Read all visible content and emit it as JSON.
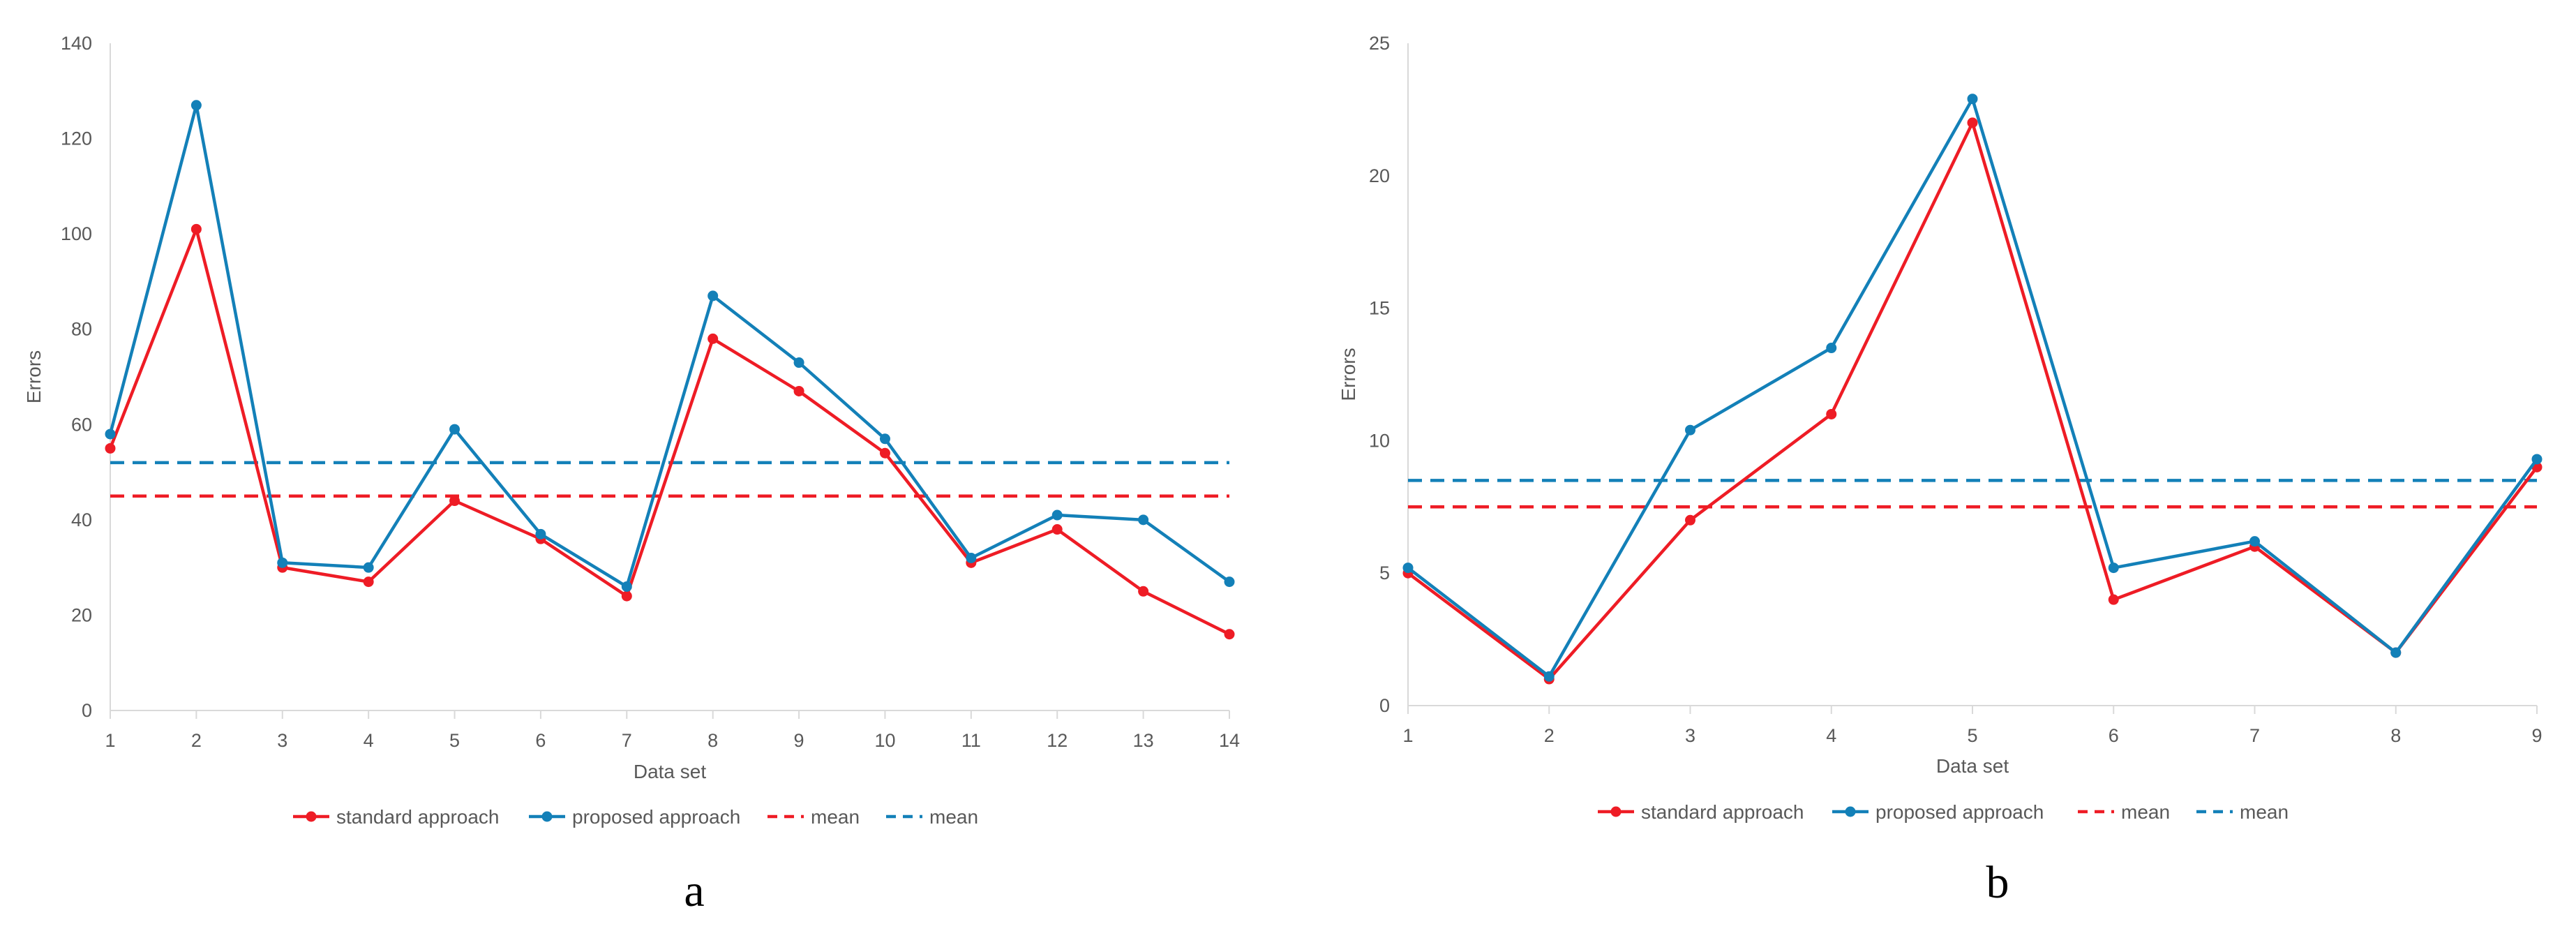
{
  "chart_data": [
    {
      "type": "line",
      "panel_label": "a",
      "title": "",
      "xlabel": "Data set",
      "ylabel": "Errors",
      "categories": [
        "1",
        "2",
        "3",
        "4",
        "5",
        "6",
        "7",
        "8",
        "9",
        "10",
        "11",
        "12",
        "13",
        "14"
      ],
      "ylim": [
        0,
        140
      ],
      "yticks": [
        0,
        20,
        40,
        60,
        80,
        100,
        120,
        140
      ],
      "grid": false,
      "legend_position": "bottom",
      "series": [
        {
          "name": "standard approach",
          "color": "#ee1c25",
          "style": "solid",
          "markers": true,
          "values": [
            55,
            101,
            30,
            27,
            44,
            36,
            24,
            78,
            67,
            54,
            31,
            38,
            25,
            16
          ]
        },
        {
          "name": "proposed approach",
          "color": "#1380b8",
          "style": "solid",
          "markers": true,
          "values": [
            58,
            127,
            31,
            30,
            59,
            37,
            26,
            87,
            73,
            57,
            32,
            41,
            40,
            27
          ]
        },
        {
          "name": "mean",
          "color": "#ee1c25",
          "style": "dashed",
          "markers": false,
          "constant": 45
        },
        {
          "name": "mean",
          "color": "#1380b8",
          "style": "dashed",
          "markers": false,
          "constant": 52
        }
      ]
    },
    {
      "type": "line",
      "panel_label": "b",
      "title": "",
      "xlabel": "Data set",
      "ylabel": "Errors",
      "categories": [
        "1",
        "2",
        "3",
        "4",
        "5",
        "6",
        "7",
        "8",
        "9"
      ],
      "ylim": [
        0,
        25
      ],
      "yticks": [
        0,
        5,
        10,
        15,
        20,
        25
      ],
      "grid": false,
      "legend_position": "bottom",
      "series": [
        {
          "name": "standard approach",
          "color": "#ee1c25",
          "style": "solid",
          "markers": true,
          "values": [
            5,
            1,
            7,
            11,
            22,
            4,
            6,
            2,
            9
          ]
        },
        {
          "name": "proposed approach",
          "color": "#1380b8",
          "style": "solid",
          "markers": true,
          "values": [
            5.2,
            1.1,
            10.4,
            13.5,
            22.9,
            5.2,
            6.2,
            2,
            9.3
          ]
        },
        {
          "name": "mean",
          "color": "#ee1c25",
          "style": "dashed",
          "markers": false,
          "constant": 7.5
        },
        {
          "name": "mean",
          "color": "#1380b8",
          "style": "dashed",
          "markers": false,
          "constant": 8.5
        }
      ]
    }
  ]
}
